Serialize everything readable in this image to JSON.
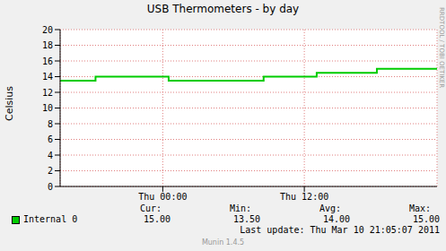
{
  "chart_data": {
    "type": "line",
    "title": "USB Thermometers - by day",
    "y_label": "Celsius",
    "x": [
      -8.7,
      -5.7,
      0.5,
      8.55,
      13.05,
      18.15,
      23.25
    ],
    "series": [
      {
        "name": "Internal 0",
        "color": "#00cc00",
        "line_style": "step",
        "values": [
          13.5,
          14.0,
          13.5,
          14.0,
          14.5,
          15.0,
          15.0
        ],
        "stats": {
          "labels": [
            "Cur:",
            "Min:",
            "Avg:",
            "Max:"
          ],
          "values": [
            15,
            13.5,
            14,
            15
          ],
          "value_labels": [
            "15.00",
            "13.50",
            "14.00",
            "15.00"
          ]
        }
      }
    ],
    "xlim": [
      -8.7,
      23.25
    ],
    "xticks": [
      {
        "value": 0,
        "label": "Thu 00:00"
      },
      {
        "value": 12,
        "label": "Thu 12:00"
      }
    ],
    "ylim": [
      0,
      20
    ],
    "yticks": [
      0,
      2,
      4,
      6,
      8,
      10,
      12,
      14,
      16,
      18,
      20
    ],
    "grid": true,
    "annotations": [
      "Last update: Thu Mar 10 21:05:07 2011",
      "Munin 1.4.5",
      "RRDTOOL / TOBI OETIKER"
    ]
  }
}
